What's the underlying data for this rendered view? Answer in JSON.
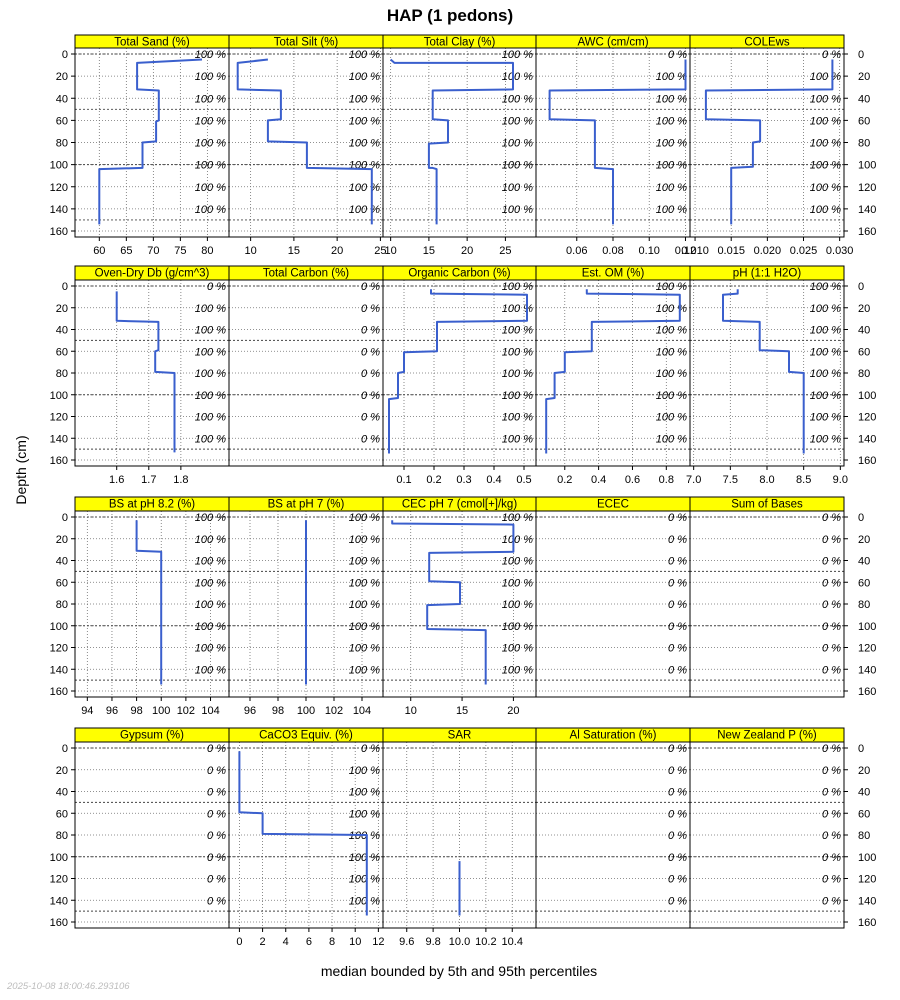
{
  "chart_data": {
    "type": "line",
    "title": "HAP (1 pedons)",
    "ylabel": "Depth (cm)",
    "xlabel": "median bounded by 5th and 95th percentiles",
    "timestamp": "2025-10-08 18:00:46.293106",
    "ylim": [
      160,
      0
    ],
    "depth_ticks": [
      "0",
      "20",
      "40",
      "60",
      "80",
      "100",
      "120",
      "140",
      "160"
    ],
    "depth_tick_values": [
      0,
      20,
      40,
      60,
      80,
      100,
      120,
      140,
      160
    ],
    "horizon_boundaries": [
      0,
      50,
      100,
      150
    ],
    "pct_depths": [
      0,
      20,
      40,
      60,
      80,
      100,
      120,
      140
    ],
    "strip_color": "#ffff00",
    "line_color": "#3a5fcd",
    "panels": [
      {
        "name": "Total Sand (%)",
        "xlim": [
          55.5,
          84
        ],
        "ticks": [
          60,
          65,
          70,
          75,
          80
        ],
        "tick_labels": [
          "60",
          "65",
          "70",
          "75",
          "80"
        ],
        "pct_labels": [
          "100 %",
          "100 %",
          "100 %",
          "100 %",
          "100 %",
          "100 %",
          "100 %",
          "100 %"
        ],
        "profile": [
          [
            79,
            5
          ],
          [
            67,
            8
          ],
          [
            67,
            32
          ],
          [
            71,
            33
          ],
          [
            71,
            60
          ],
          [
            70.5,
            61
          ],
          [
            70.5,
            79
          ],
          [
            68,
            80
          ],
          [
            68,
            103
          ],
          [
            60,
            104
          ],
          [
            60,
            154
          ]
        ]
      },
      {
        "name": "Total Silt (%)",
        "xlim": [
          7.5,
          25.3
        ],
        "ticks": [
          10,
          15,
          20,
          25
        ],
        "tick_labels": [
          "10",
          "15",
          "20",
          "25"
        ],
        "pct_labels": [
          "100 %",
          "100 %",
          "100 %",
          "100 %",
          "100 %",
          "100 %",
          "100 %",
          "100 %"
        ],
        "profile": [
          [
            12,
            5
          ],
          [
            8.5,
            8
          ],
          [
            8.5,
            32
          ],
          [
            13.5,
            33
          ],
          [
            13.5,
            59
          ],
          [
            12,
            60
          ],
          [
            12,
            79
          ],
          [
            16.5,
            80
          ],
          [
            16.5,
            103
          ],
          [
            24,
            104
          ],
          [
            24,
            154
          ]
        ]
      },
      {
        "name": "Total Clay (%)",
        "xlim": [
          9,
          29
        ],
        "ticks": [
          10,
          15,
          20,
          25
        ],
        "tick_labels": [
          "10",
          "15",
          "20",
          "25"
        ],
        "pct_labels": [
          "100 %",
          "100 %",
          "100 %",
          "100 %",
          "100 %",
          "100 %",
          "100 %",
          "100 %"
        ],
        "profile": [
          [
            10,
            5
          ],
          [
            10.5,
            8
          ],
          [
            26,
            8
          ],
          [
            26,
            32
          ],
          [
            15.5,
            33
          ],
          [
            15.5,
            59
          ],
          [
            17.5,
            60
          ],
          [
            17.5,
            80
          ],
          [
            15,
            81
          ],
          [
            15,
            103
          ],
          [
            15.5,
            103
          ],
          [
            16,
            104
          ],
          [
            16,
            154
          ]
        ]
      },
      {
        "name": "AWC (cm/cm)",
        "xlim": [
          0.0375,
          0.1225
        ],
        "ticks": [
          0.06,
          0.08,
          0.1,
          0.12
        ],
        "tick_labels": [
          "0.06",
          "0.08",
          "0.10",
          "0.12"
        ],
        "pct_labels": [
          "0 %",
          "100 %",
          "100 %",
          "100 %",
          "100 %",
          "100 %",
          "100 %",
          "100 %"
        ],
        "profile": [
          [
            0.12,
            5
          ],
          [
            0.12,
            32
          ],
          [
            0.045,
            33
          ],
          [
            0.045,
            59
          ],
          [
            0.07,
            60
          ],
          [
            0.07,
            103
          ],
          [
            0.08,
            104
          ],
          [
            0.08,
            154
          ]
        ]
      },
      {
        "name": "COLEws",
        "xlim": [
          0.0093,
          0.0306
        ],
        "ticks": [
          0.01,
          0.015,
          0.02,
          0.025,
          0.03
        ],
        "tick_labels": [
          "0.010",
          "0.015",
          "0.020",
          "0.025",
          "0.030"
        ],
        "pct_labels": [
          "0 %",
          "100 %",
          "100 %",
          "100 %",
          "100 %",
          "100 %",
          "100 %",
          "100 %"
        ],
        "profile": [
          [
            0.029,
            5
          ],
          [
            0.029,
            32
          ],
          [
            0.0115,
            33
          ],
          [
            0.0115,
            59
          ],
          [
            0.019,
            60
          ],
          [
            0.019,
            79
          ],
          [
            0.018,
            80
          ],
          [
            0.018,
            102
          ],
          [
            0.015,
            103
          ],
          [
            0.015,
            154
          ]
        ]
      },
      {
        "name": "Oven-Dry Db (g/cm^3)",
        "xlim": [
          1.47,
          1.95
        ],
        "ticks": [
          1.6,
          1.7,
          1.8
        ],
        "tick_labels": [
          "1.6",
          "1.7",
          "1.8"
        ],
        "pct_labels": [
          "0 %",
          "100 %",
          "100 %",
          "100 %",
          "100 %",
          "100 %",
          "100 %",
          "100 %"
        ],
        "profile": [
          [
            1.6,
            5
          ],
          [
            1.6,
            32
          ],
          [
            1.73,
            33
          ],
          [
            1.73,
            59
          ],
          [
            1.72,
            60
          ],
          [
            1.72,
            79
          ],
          [
            1.78,
            80
          ],
          [
            1.78,
            153
          ]
        ]
      },
      {
        "name": "Total Carbon (%)",
        "xlim": [
          0,
          1
        ],
        "ticks": [],
        "tick_labels": [],
        "pct_labels": [
          "0 %",
          "0 %",
          "0 %",
          "0 %",
          "0 %",
          "0 %",
          "0 %",
          "0 %"
        ],
        "profile": []
      },
      {
        "name": "Organic Carbon (%)",
        "xlim": [
          0.03,
          0.54
        ],
        "ticks": [
          0.1,
          0.2,
          0.3,
          0.4,
          0.5
        ],
        "tick_labels": [
          "0.1",
          "0.2",
          "0.3",
          "0.4",
          "0.5"
        ],
        "pct_labels": [
          "100 %",
          "100 %",
          "100 %",
          "100 %",
          "100 %",
          "100 %",
          "100 %",
          "100 %"
        ],
        "profile": [
          [
            0.19,
            3
          ],
          [
            0.19,
            7
          ],
          [
            0.51,
            8
          ],
          [
            0.51,
            32
          ],
          [
            0.21,
            33
          ],
          [
            0.21,
            60
          ],
          [
            0.1,
            61
          ],
          [
            0.1,
            79
          ],
          [
            0.08,
            80
          ],
          [
            0.08,
            103
          ],
          [
            0.05,
            104
          ],
          [
            0.05,
            154
          ]
        ]
      },
      {
        "name": "Est. OM (%)",
        "xlim": [
          0.03,
          0.94
        ],
        "ticks": [
          0.2,
          0.4,
          0.6,
          0.8
        ],
        "tick_labels": [
          "0.2",
          "0.4",
          "0.6",
          "0.8"
        ],
        "pct_labels": [
          "100 %",
          "100 %",
          "100 %",
          "100 %",
          "100 %",
          "100 %",
          "100 %",
          "100 %"
        ],
        "profile": [
          [
            0.33,
            3
          ],
          [
            0.33,
            7
          ],
          [
            0.88,
            8
          ],
          [
            0.88,
            32
          ],
          [
            0.36,
            33
          ],
          [
            0.36,
            60
          ],
          [
            0.2,
            61
          ],
          [
            0.2,
            79
          ],
          [
            0.14,
            80
          ],
          [
            0.14,
            103
          ],
          [
            0.09,
            104
          ],
          [
            0.09,
            154
          ]
        ]
      },
      {
        "name": "pH (1:1 H2O)",
        "xlim": [
          6.95,
          9.05
        ],
        "ticks": [
          7.0,
          7.5,
          8.0,
          8.5,
          9.0
        ],
        "tick_labels": [
          "7.0",
          "7.5",
          "8.0",
          "8.5",
          "9.0"
        ],
        "pct_labels": [
          "100 %",
          "100 %",
          "100 %",
          "100 %",
          "100 %",
          "100 %",
          "100 %",
          "100 %"
        ],
        "profile": [
          [
            7.6,
            3
          ],
          [
            7.6,
            7
          ],
          [
            7.4,
            8
          ],
          [
            7.4,
            32
          ],
          [
            7.9,
            33
          ],
          [
            7.9,
            59
          ],
          [
            8.3,
            60
          ],
          [
            8.3,
            79
          ],
          [
            8.5,
            80
          ],
          [
            8.5,
            154
          ]
        ]
      },
      {
        "name": "BS at pH 8.2 (%)",
        "xlim": [
          93,
          105.5
        ],
        "ticks": [
          94,
          96,
          98,
          100,
          102,
          104
        ],
        "tick_labels": [
          "94",
          "96",
          "98",
          "100",
          "102",
          "104"
        ],
        "pct_labels": [
          "100 %",
          "100 %",
          "100 %",
          "100 %",
          "100 %",
          "100 %",
          "100 %",
          "100 %"
        ],
        "profile": [
          [
            98,
            3
          ],
          [
            98,
            31
          ],
          [
            100,
            32
          ],
          [
            100,
            154
          ]
        ]
      },
      {
        "name": "BS at pH 7 (%)",
        "xlim": [
          94.5,
          105.5
        ],
        "ticks": [
          96,
          98,
          100,
          102,
          104
        ],
        "tick_labels": [
          "96",
          "98",
          "100",
          "102",
          "104"
        ],
        "pct_labels": [
          "100 %",
          "100 %",
          "100 %",
          "100 %",
          "100 %",
          "100 %",
          "100 %",
          "100 %"
        ],
        "profile": [
          [
            100,
            3
          ],
          [
            100,
            154
          ]
        ]
      },
      {
        "name": "CEC pH 7 (cmol[+]/kg)",
        "xlim": [
          7.3,
          22.2
        ],
        "ticks": [
          10,
          15,
          20
        ],
        "tick_labels": [
          "10",
          "15",
          "20"
        ],
        "pct_labels": [
          "100 %",
          "100 %",
          "100 %",
          "100 %",
          "100 %",
          "100 %",
          "100 %",
          "100 %"
        ],
        "profile": [
          [
            8.2,
            3
          ],
          [
            8.2,
            6
          ],
          [
            20,
            7
          ],
          [
            20,
            32
          ],
          [
            11.8,
            33
          ],
          [
            11.8,
            59
          ],
          [
            14.8,
            60
          ],
          [
            14.8,
            80
          ],
          [
            11.6,
            81
          ],
          [
            11.6,
            103
          ],
          [
            17.3,
            104
          ],
          [
            17.3,
            154
          ]
        ]
      },
      {
        "name": "ECEC",
        "xlim": [
          0,
          1
        ],
        "ticks": [],
        "tick_labels": [],
        "pct_labels": [
          "0 %",
          "0 %",
          "0 %",
          "0 %",
          "0 %",
          "0 %",
          "0 %",
          "0 %"
        ],
        "profile": []
      },
      {
        "name": "Sum of Bases",
        "xlim": [
          0,
          1
        ],
        "ticks": [],
        "tick_labels": [],
        "pct_labels": [
          "0 %",
          "0 %",
          "0 %",
          "0 %",
          "0 %",
          "0 %",
          "0 %",
          "0 %"
        ],
        "profile": []
      },
      {
        "name": "Gypsum (%)",
        "xlim": [
          0,
          1
        ],
        "ticks": [],
        "tick_labels": [],
        "pct_labels": [
          "0 %",
          "0 %",
          "0 %",
          "0 %",
          "0 %",
          "0 %",
          "0 %",
          "0 %"
        ],
        "profile": []
      },
      {
        "name": "CaCO3 Equiv. (%)",
        "xlim": [
          -0.9,
          12.4
        ],
        "ticks": [
          0,
          2,
          4,
          6,
          8,
          10,
          12
        ],
        "tick_labels": [
          "0",
          "2",
          "4",
          "6",
          "8",
          "10",
          "12"
        ],
        "pct_labels": [
          "0 %",
          "100 %",
          "100 %",
          "100 %",
          "100 %",
          "100 %",
          "100 %",
          "100 %"
        ],
        "profile": [
          [
            0,
            3
          ],
          [
            0,
            59
          ],
          [
            2,
            60
          ],
          [
            2,
            79
          ],
          [
            11,
            80
          ],
          [
            11,
            154
          ]
        ]
      },
      {
        "name": "SAR",
        "xlim": [
          9.42,
          10.58
        ],
        "ticks": [
          9.6,
          9.8,
          10.0,
          10.2,
          10.4
        ],
        "tick_labels": [
          "9.6",
          "9.8",
          "10.0",
          "10.2",
          "10.4"
        ],
        "pct_labels": [
          "",
          "",
          "",
          "",
          "",
          "",
          "",
          ""
        ],
        "profile": [
          [
            10,
            104
          ],
          [
            10,
            154
          ]
        ]
      },
      {
        "name": "Al Saturation (%)",
        "xlim": [
          0,
          1
        ],
        "ticks": [],
        "tick_labels": [],
        "pct_labels": [
          "0 %",
          "0 %",
          "0 %",
          "0 %",
          "0 %",
          "0 %",
          "0 %",
          "0 %"
        ],
        "profile": []
      },
      {
        "name": "New Zealand P (%)",
        "xlim": [
          0,
          1
        ],
        "ticks": [],
        "tick_labels": [],
        "pct_labels": [
          "0 %",
          "0 %",
          "0 %",
          "0 %",
          "0 %",
          "0 %",
          "0 %",
          "0 %"
        ],
        "profile": []
      }
    ]
  }
}
